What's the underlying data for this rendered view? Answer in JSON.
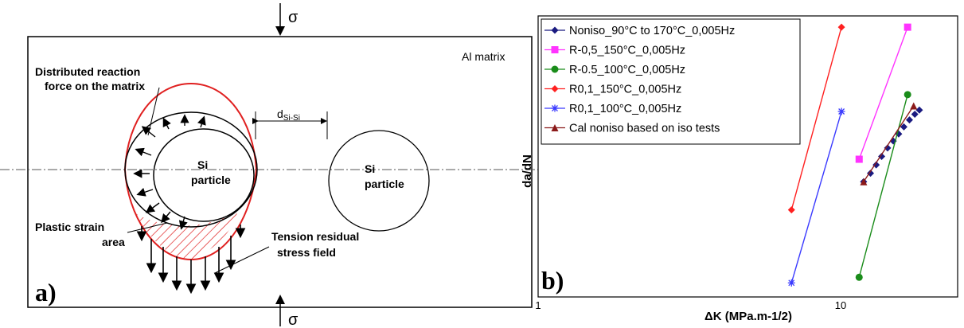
{
  "figure_a": {
    "panel_label": "a)",
    "sigma": "σ",
    "matrix_label": "Al matrix",
    "reaction_force_line1": "Distributed reaction",
    "reaction_force_line2": "force on the matrix",
    "distance_main": "d",
    "distance_sub": "Si-Si",
    "particle_left_line1": "Si",
    "particle_left_line2": "particle",
    "particle_right_line1": "Si",
    "particle_right_line2": "particle",
    "plastic_line1": "Plastic strain",
    "plastic_line2": "area",
    "tension_line1": "Tension residual",
    "tension_line2": "stress field",
    "colors": {
      "boundary": "#e02020",
      "lines": "#000000"
    }
  },
  "chart_data": {
    "type": "line",
    "panel_label": "b)",
    "xlabel": "ΔK (MPa.m-1/2)",
    "ylabel": "da/dN",
    "x_scale": "log",
    "y_scale": "log",
    "x_ticks": [
      "1",
      "10"
    ],
    "xlim": [
      1,
      30
    ],
    "y_ticks_shown": false,
    "legend_position": "top-left",
    "series": [
      {
        "name": "Noniso_90°C to 170°C_0,005Hz",
        "color": "#1a1a80",
        "marker": "diamond",
        "line": false,
        "x": [
          14,
          14.8,
          15.5,
          16.2,
          17,
          17.8,
          18.6,
          19.4,
          20.3,
          21.2,
          22
        ],
        "yrel": [
          0.41,
          0.44,
          0.47,
          0.5,
          0.53,
          0.555,
          0.58,
          0.605,
          0.63,
          0.65,
          0.665
        ]
      },
      {
        "name": "R-0,5_150°C_0,005Hz",
        "color": "#ff33ff",
        "marker": "square",
        "line": true,
        "x": [
          13.5,
          20
        ],
        "yrel": [
          0.49,
          0.96
        ]
      },
      {
        "name": "R-0.5_100°C_0,005Hz",
        "color": "#1a8c1a",
        "marker": "circle",
        "line": true,
        "x": [
          13.5,
          20
        ],
        "yrel": [
          0.07,
          0.72
        ]
      },
      {
        "name": "R0,1_150°C_0,005Hz",
        "color": "#ff2020",
        "marker": "diamond",
        "line": true,
        "x": [
          7.8,
          11.7
        ],
        "yrel": [
          0.31,
          0.96
        ]
      },
      {
        "name": "R0,1_100°C_0,005Hz",
        "color": "#3a3aff",
        "marker": "asterisk",
        "line": true,
        "x": [
          7.8,
          11.7
        ],
        "yrel": [
          0.05,
          0.66
        ]
      },
      {
        "name": "Cal noniso based on iso tests",
        "color": "#8b1a1a",
        "marker": "triangle",
        "line": true,
        "x": [
          14,
          21
        ],
        "yrel": [
          0.41,
          0.68
        ]
      }
    ]
  }
}
